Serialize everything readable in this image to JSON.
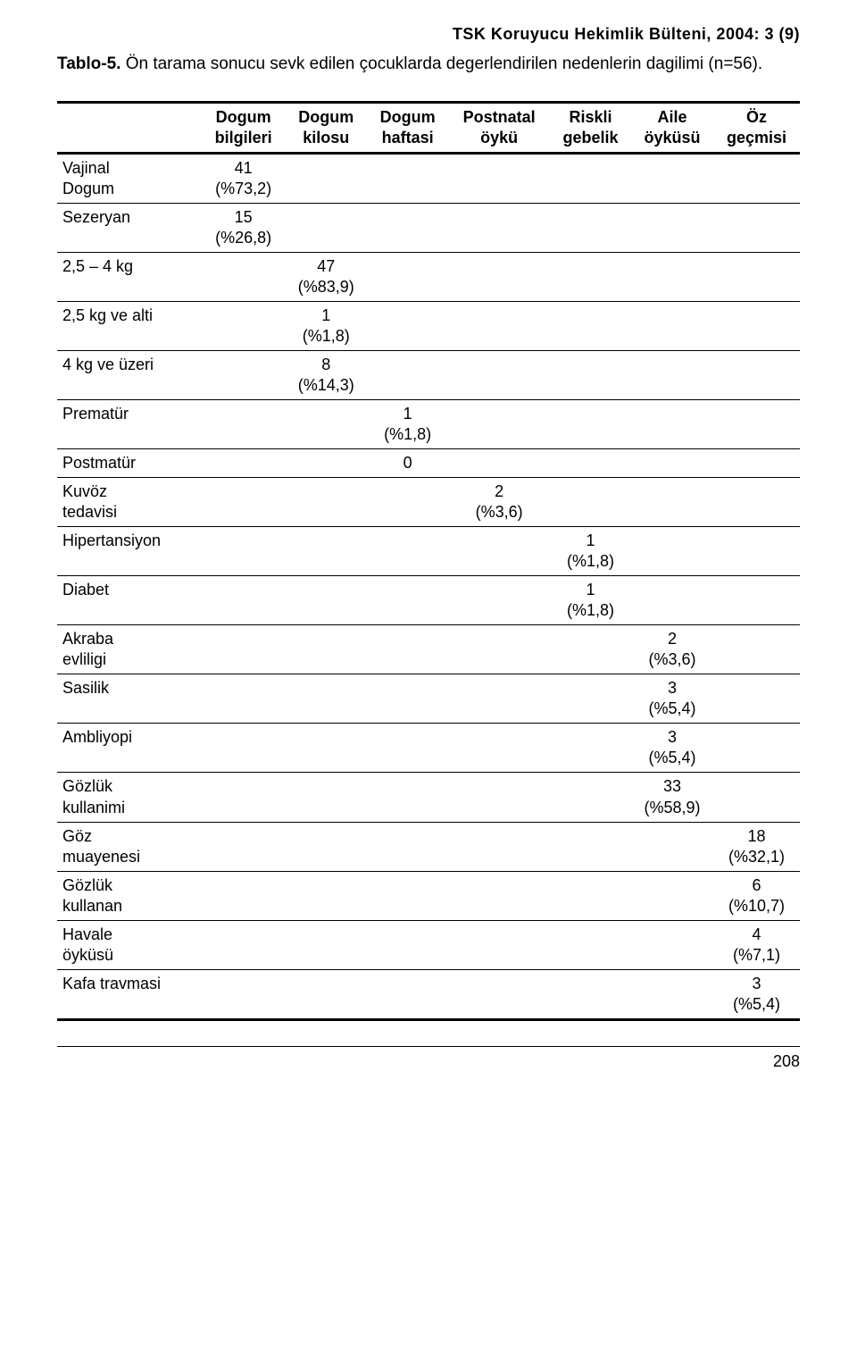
{
  "running_head": "TSK Koruyucu Hekimlik Bülteni, 2004: 3 (9)",
  "caption": {
    "label": "Tablo-5.",
    "text": " Ön tarama sonucu sevk edilen çocuklarda degerlendirilen nedenlerin dagilimi (n=56)."
  },
  "page_number": "208",
  "table": {
    "columns": [
      "",
      "Dogum\nbilgileri",
      "Dogum\nkilosu",
      "Dogum\nhaftasi",
      "Postnatal\nöykü",
      "Riskli\ngebelik",
      "Aile\nöyküsü",
      "Öz\ngeçmisi"
    ],
    "rows": [
      {
        "label": "Vajinal\nDogum",
        "cells": [
          "41\n(%73,2)",
          "",
          "",
          "",
          "",
          "",
          ""
        ]
      },
      {
        "label": "Sezeryan",
        "cells": [
          "15\n(%26,8)",
          "",
          "",
          "",
          "",
          "",
          ""
        ]
      },
      {
        "label": "2,5 – 4 kg",
        "cells": [
          "",
          "47\n(%83,9)",
          "",
          "",
          "",
          "",
          ""
        ]
      },
      {
        "label": "2,5 kg ve alti",
        "cells": [
          "",
          "1\n(%1,8)",
          "",
          "",
          "",
          "",
          ""
        ]
      },
      {
        "label": "4 kg ve üzeri",
        "cells": [
          "",
          "8\n(%14,3)",
          "",
          "",
          "",
          "",
          ""
        ]
      },
      {
        "label": "Prematür",
        "cells": [
          "",
          "",
          "1\n(%1,8)",
          "",
          "",
          "",
          ""
        ]
      },
      {
        "label": "Postmatür",
        "cells": [
          "",
          "",
          "0",
          "",
          "",
          "",
          ""
        ]
      },
      {
        "label": "Kuvöz\ntedavisi",
        "cells": [
          "",
          "",
          "",
          "2\n(%3,6)",
          "",
          "",
          ""
        ]
      },
      {
        "label": "Hipertansiyon",
        "cells": [
          "",
          "",
          "",
          "",
          "1\n(%1,8)",
          "",
          ""
        ]
      },
      {
        "label": "Diabet",
        "cells": [
          "",
          "",
          "",
          "",
          "1\n(%1,8)",
          "",
          ""
        ]
      },
      {
        "label": "Akraba\nevliligi",
        "cells": [
          "",
          "",
          "",
          "",
          "",
          "2\n(%3,6)",
          ""
        ]
      },
      {
        "label": "Sasilik",
        "cells": [
          "",
          "",
          "",
          "",
          "",
          "3\n(%5,4)",
          ""
        ]
      },
      {
        "label": "Ambliyopi",
        "cells": [
          "",
          "",
          "",
          "",
          "",
          "3\n(%5,4)",
          ""
        ]
      },
      {
        "label": "Gözlük\nkullanimi",
        "cells": [
          "",
          "",
          "",
          "",
          "",
          "33\n(%58,9)",
          ""
        ]
      },
      {
        "label": "Göz\nmuayenesi",
        "cells": [
          "",
          "",
          "",
          "",
          "",
          "",
          "18\n(%32,1)"
        ]
      },
      {
        "label": "Gözlük\nkullanan",
        "cells": [
          "",
          "",
          "",
          "",
          "",
          "",
          "6\n(%10,7)"
        ]
      },
      {
        "label": "Havale\nöyküsü",
        "cells": [
          "",
          "",
          "",
          "",
          "",
          "",
          "4\n(%7,1)"
        ]
      },
      {
        "label": "Kafa travmasi",
        "cells": [
          "",
          "",
          "",
          "",
          "",
          "",
          "3\n(%5,4)"
        ]
      }
    ]
  }
}
